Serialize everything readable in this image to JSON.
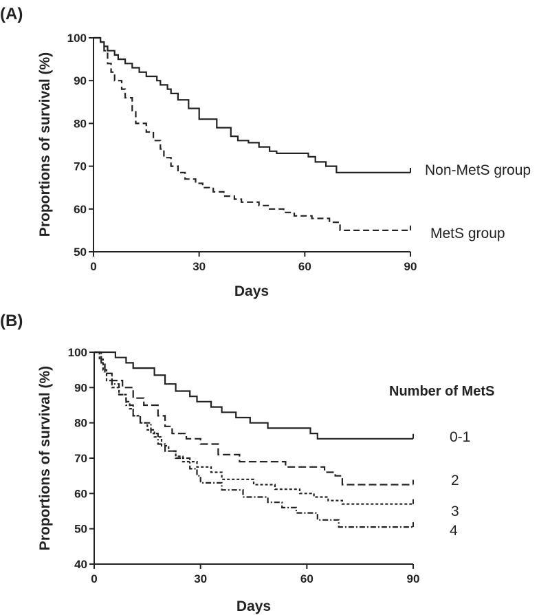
{
  "chart_data": [
    {
      "panel_label": "(A)",
      "type": "line",
      "subtype": "kaplan-meier-step",
      "xlabel": "Days",
      "ylabel": "Proportions of survival (%)",
      "xlim": [
        0,
        90
      ],
      "ylim": [
        50,
        100
      ],
      "xticks": [
        "0",
        "30",
        "60",
        "90"
      ],
      "yticks": [
        "50",
        "60",
        "70",
        "80",
        "90",
        "100"
      ],
      "grid": false,
      "series": [
        {
          "name": "Non-MetS group",
          "style": "solid",
          "points": [
            [
              0,
              100
            ],
            [
              2,
              100
            ],
            [
              2,
              99
            ],
            [
              3,
              99
            ],
            [
              3,
              98
            ],
            [
              4,
              98
            ],
            [
              4,
              97
            ],
            [
              6,
              97
            ],
            [
              6,
              96
            ],
            [
              7,
              96
            ],
            [
              7,
              95
            ],
            [
              9,
              95
            ],
            [
              9,
              94
            ],
            [
              11,
              94
            ],
            [
              11,
              93
            ],
            [
              13,
              93
            ],
            [
              13,
              92
            ],
            [
              15,
              92
            ],
            [
              15,
              91
            ],
            [
              18,
              91
            ],
            [
              18,
              90
            ],
            [
              19,
              90
            ],
            [
              19,
              89
            ],
            [
              21,
              89
            ],
            [
              21,
              88
            ],
            [
              22,
              88
            ],
            [
              22,
              87
            ],
            [
              24,
              87
            ],
            [
              24,
              85.5
            ],
            [
              27,
              85.5
            ],
            [
              27,
              83.5
            ],
            [
              30,
              83.5
            ],
            [
              30,
              81
            ],
            [
              35,
              81
            ],
            [
              35,
              79
            ],
            [
              39,
              79
            ],
            [
              39,
              77
            ],
            [
              41,
              77
            ],
            [
              41,
              76
            ],
            [
              44,
              76
            ],
            [
              44,
              75.5
            ],
            [
              47,
              75.5
            ],
            [
              47,
              74.5
            ],
            [
              50,
              74.5
            ],
            [
              50,
              73.5
            ],
            [
              52,
              73.5
            ],
            [
              52,
              73
            ],
            [
              61,
              73
            ],
            [
              61,
              72.2
            ],
            [
              63,
              72.2
            ],
            [
              63,
              71
            ],
            [
              66,
              71
            ],
            [
              66,
              70
            ],
            [
              69,
              70
            ],
            [
              69,
              68.5
            ],
            [
              90,
              68.5
            ]
          ]
        },
        {
          "name": "MetS group",
          "style": "dashed",
          "points": [
            [
              0,
              100
            ],
            [
              2,
              100
            ],
            [
              2,
              99
            ],
            [
              3,
              99
            ],
            [
              3,
              97
            ],
            [
              4,
              97
            ],
            [
              4,
              94
            ],
            [
              5,
              94
            ],
            [
              5,
              92
            ],
            [
              6,
              92
            ],
            [
              6,
              90
            ],
            [
              8,
              90
            ],
            [
              8,
              88
            ],
            [
              9,
              88
            ],
            [
              9,
              86
            ],
            [
              11,
              86
            ],
            [
              11,
              83
            ],
            [
              12,
              83
            ],
            [
              12,
              80
            ],
            [
              15,
              80
            ],
            [
              15,
              78
            ],
            [
              17,
              78
            ],
            [
              17,
              76
            ],
            [
              19,
              76
            ],
            [
              19,
              74
            ],
            [
              20,
              74
            ],
            [
              20,
              72
            ],
            [
              22,
              72
            ],
            [
              22,
              70
            ],
            [
              24,
              70
            ],
            [
              24,
              68.5
            ],
            [
              26,
              68.5
            ],
            [
              26,
              67
            ],
            [
              29,
              67
            ],
            [
              29,
              66
            ],
            [
              31,
              66
            ],
            [
              31,
              65
            ],
            [
              34,
              65
            ],
            [
              34,
              64
            ],
            [
              37,
              64
            ],
            [
              37,
              63
            ],
            [
              40,
              63
            ],
            [
              40,
              62.3
            ],
            [
              42,
              62.3
            ],
            [
              42,
              61.6
            ],
            [
              47,
              61.6
            ],
            [
              47,
              60.8
            ],
            [
              50,
              60.8
            ],
            [
              50,
              60
            ],
            [
              54,
              60
            ],
            [
              54,
              59.2
            ],
            [
              57,
              59.2
            ],
            [
              57,
              58.4
            ],
            [
              62,
              58.4
            ],
            [
              62,
              57.8
            ],
            [
              67,
              57.8
            ],
            [
              67,
              56.9
            ],
            [
              70,
              56.9
            ],
            [
              70,
              55
            ],
            [
              90,
              55
            ]
          ]
        }
      ],
      "annotations": [
        "Non-MetS group",
        "MetS group"
      ]
    },
    {
      "panel_label": "(B)",
      "type": "line",
      "subtype": "kaplan-meier-step",
      "xlabel": "Days",
      "ylabel": "Proportions of survival (%)",
      "xlim": [
        0,
        90
      ],
      "ylim": [
        40,
        100
      ],
      "xticks": [
        "0",
        "30",
        "60",
        "90"
      ],
      "yticks": [
        "40",
        "50",
        "60",
        "70",
        "80",
        "90",
        "100"
      ],
      "grid": false,
      "legend_title": "Number of MetS",
      "series": [
        {
          "name": "0-1",
          "style": "solid",
          "points": [
            [
              0,
              100
            ],
            [
              6,
              100
            ],
            [
              6,
              98.5
            ],
            [
              9,
              98.5
            ],
            [
              9,
              97
            ],
            [
              11,
              97
            ],
            [
              11,
              95.5
            ],
            [
              17,
              95.5
            ],
            [
              17,
              93.5
            ],
            [
              20,
              93.5
            ],
            [
              20,
              91
            ],
            [
              23,
              91
            ],
            [
              23,
              89
            ],
            [
              27,
              89
            ],
            [
              27,
              87.5
            ],
            [
              29,
              87.5
            ],
            [
              29,
              86
            ],
            [
              33,
              86
            ],
            [
              33,
              84.5
            ],
            [
              36,
              84.5
            ],
            [
              36,
              83
            ],
            [
              40,
              83
            ],
            [
              40,
              81.5
            ],
            [
              44,
              81.5
            ],
            [
              44,
              80
            ],
            [
              49,
              80
            ],
            [
              49,
              78.5
            ],
            [
              61,
              78.5
            ],
            [
              61,
              77
            ],
            [
              63,
              77
            ],
            [
              63,
              75.5
            ],
            [
              90,
              75.5
            ]
          ]
        },
        {
          "name": "2",
          "style": "long-dashed",
          "points": [
            [
              0,
              100
            ],
            [
              2,
              100
            ],
            [
              2,
              97
            ],
            [
              3,
              97
            ],
            [
              3,
              94
            ],
            [
              5,
              94
            ],
            [
              5,
              92
            ],
            [
              8,
              92
            ],
            [
              8,
              90
            ],
            [
              11,
              90
            ],
            [
              11,
              87
            ],
            [
              14,
              87
            ],
            [
              14,
              85
            ],
            [
              18,
              85
            ],
            [
              18,
              82
            ],
            [
              20,
              82
            ],
            [
              20,
              79
            ],
            [
              22,
              79
            ],
            [
              22,
              77
            ],
            [
              26,
              77
            ],
            [
              26,
              75.5
            ],
            [
              30,
              75.5
            ],
            [
              30,
              74
            ],
            [
              35,
              74
            ],
            [
              35,
              71
            ],
            [
              41,
              71
            ],
            [
              41,
              69
            ],
            [
              54,
              69
            ],
            [
              54,
              67.5
            ],
            [
              65,
              67.5
            ],
            [
              65,
              66
            ],
            [
              68,
              66
            ],
            [
              68,
              65
            ],
            [
              70,
              65
            ],
            [
              70,
              62.5
            ],
            [
              90,
              62.5
            ]
          ]
        },
        {
          "name": "3",
          "style": "short-dashed",
          "points": [
            [
              0,
              100
            ],
            [
              1.5,
              100
            ],
            [
              1.5,
              98
            ],
            [
              2.5,
              98
            ],
            [
              2.5,
              95
            ],
            [
              3.5,
              95
            ],
            [
              3.5,
              92
            ],
            [
              5,
              92
            ],
            [
              5,
              90
            ],
            [
              7,
              90
            ],
            [
              7,
              88
            ],
            [
              9,
              88
            ],
            [
              9,
              86
            ],
            [
              10,
              86
            ],
            [
              10,
              84
            ],
            [
              11,
              84
            ],
            [
              11,
              82
            ],
            [
              13,
              82
            ],
            [
              13,
              80
            ],
            [
              15,
              80
            ],
            [
              15,
              78
            ],
            [
              17,
              78
            ],
            [
              17,
              76
            ],
            [
              19,
              76
            ],
            [
              19,
              73.5
            ],
            [
              21,
              73.5
            ],
            [
              21,
              72
            ],
            [
              23,
              72
            ],
            [
              23,
              70.5
            ],
            [
              25,
              70.5
            ],
            [
              25,
              69
            ],
            [
              29,
              69
            ],
            [
              29,
              67.5
            ],
            [
              33,
              67.5
            ],
            [
              33,
              66
            ],
            [
              36,
              66
            ],
            [
              36,
              64
            ],
            [
              45,
              64
            ],
            [
              45,
              62.5
            ],
            [
              51,
              62.5
            ],
            [
              51,
              61.2
            ],
            [
              58,
              61.2
            ],
            [
              58,
              60
            ],
            [
              62,
              60
            ],
            [
              62,
              59
            ],
            [
              66,
              59
            ],
            [
              66,
              58
            ],
            [
              70,
              58
            ],
            [
              70,
              57
            ],
            [
              90,
              57
            ]
          ]
        },
        {
          "name": "4",
          "style": "dash-dot",
          "points": [
            [
              0,
              100
            ],
            [
              2,
              100
            ],
            [
              2,
              97
            ],
            [
              3,
              97
            ],
            [
              3,
              94
            ],
            [
              5,
              94
            ],
            [
              5,
              91
            ],
            [
              7,
              91
            ],
            [
              7,
              88
            ],
            [
              9,
              88
            ],
            [
              9,
              85
            ],
            [
              11,
              85
            ],
            [
              11,
              82
            ],
            [
              13,
              82
            ],
            [
              13,
              80
            ],
            [
              16,
              80
            ],
            [
              16,
              77
            ],
            [
              18,
              77
            ],
            [
              18,
              74
            ],
            [
              20,
              74
            ],
            [
              20,
              72
            ],
            [
              23,
              72
            ],
            [
              23,
              70
            ],
            [
              27,
              70
            ],
            [
              27,
              67
            ],
            [
              29,
              67
            ],
            [
              29,
              65
            ],
            [
              30,
              65
            ],
            [
              30,
              63
            ],
            [
              36,
              63
            ],
            [
              36,
              61
            ],
            [
              42,
              61
            ],
            [
              42,
              59
            ],
            [
              49,
              59
            ],
            [
              49,
              57.5
            ],
            [
              53,
              57.5
            ],
            [
              53,
              56
            ],
            [
              57,
              56
            ],
            [
              57,
              54.5
            ],
            [
              63,
              54.5
            ],
            [
              63,
              52.5
            ],
            [
              69,
              52.5
            ],
            [
              69,
              50.5
            ],
            [
              90,
              50.5
            ]
          ]
        }
      ]
    }
  ]
}
